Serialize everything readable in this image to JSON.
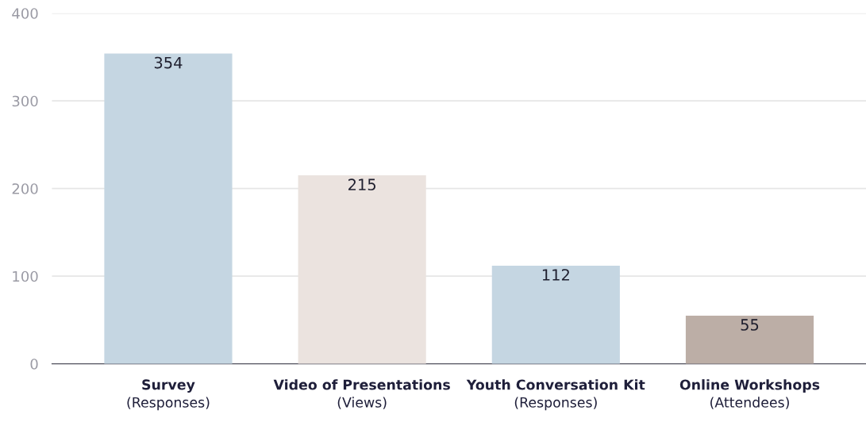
{
  "chart_data": {
    "type": "bar",
    "categories": [
      "Survey (Responses)",
      "Video of Presentations (Views)",
      "Youth Conversation Kit (Responses)",
      "Online Workshops (Attendees)"
    ],
    "values": [
      354,
      215,
      112,
      55
    ],
    "colors": [
      "#c5d6e2",
      "#ebe3df",
      "#c5d6e2",
      "#bcaea6"
    ],
    "ylim": [
      0,
      400
    ],
    "yticks": [
      0,
      100,
      200,
      300,
      400
    ],
    "grid": "y",
    "data_labels": true
  }
}
